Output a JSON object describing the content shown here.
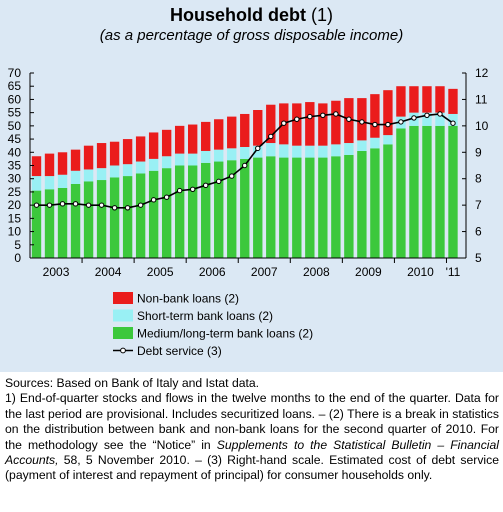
{
  "chart_data": {
    "type": "bar",
    "title": "Household debt",
    "title_note": "(1)",
    "subtitle": "(as a percentage of gross disposable income)",
    "x_tick_labels": [
      "2003",
      "2004",
      "2005",
      "2006",
      "2007",
      "2008",
      "2009",
      "2010",
      "'11"
    ],
    "ylim_left": [
      0,
      70
    ],
    "yticks_left": [
      "0",
      "5",
      "10",
      "15",
      "20",
      "25",
      "30",
      "35",
      "40",
      "45",
      "50",
      "55",
      "60",
      "65",
      "70"
    ],
    "ylim_right": [
      5,
      12
    ],
    "yticks_right": [
      "5",
      "6",
      "7",
      "8",
      "9",
      "10",
      "11",
      "12"
    ],
    "grid": false,
    "legend_placement": "bottom-left",
    "series": [
      {
        "name": "Medium/long-term bank loans (2)",
        "kind": "stacked-bar",
        "axis": "left",
        "color": "#3cc83c",
        "values": [
          25.5,
          26,
          26.5,
          28,
          29,
          29.5,
          30.5,
          31,
          32,
          33,
          34,
          35,
          35,
          36,
          36.5,
          37,
          37.5,
          38,
          38.5,
          38,
          38,
          38,
          38,
          38.5,
          39,
          40.5,
          41.5,
          43,
          49,
          50,
          50,
          50,
          50
        ]
      },
      {
        "name": "Short-term bank loans (2)",
        "kind": "stacked-bar",
        "axis": "left",
        "color": "#99f0f4",
        "values": [
          5.5,
          5,
          5,
          5,
          4.5,
          4.5,
          4.5,
          4.5,
          4.5,
          4.5,
          4.5,
          4.5,
          4.5,
          4.5,
          4.5,
          4.5,
          4.5,
          4.5,
          5,
          5,
          4.5,
          4.5,
          4.5,
          4.5,
          4.5,
          4,
          4,
          3.5,
          4.5,
          5,
          5,
          5,
          4.5
        ]
      },
      {
        "name": "Non-bank loans (2)",
        "kind": "stacked-bar",
        "axis": "left",
        "color": "#ea1c1c",
        "values": [
          7.5,
          8.5,
          8.5,
          8,
          9,
          9.5,
          9,
          9.5,
          9.5,
          10,
          10,
          10.5,
          11,
          11,
          11.5,
          12,
          12.5,
          13.5,
          14.5,
          15.5,
          16,
          16.5,
          16,
          16.5,
          17,
          16,
          16.5,
          17,
          11.5,
          10,
          10,
          10,
          9.5
        ]
      },
      {
        "name": "Debt service (3)",
        "kind": "line",
        "axis": "right",
        "color": "#000000",
        "values": [
          7,
          7,
          7.05,
          7.05,
          7,
          7,
          6.9,
          6.9,
          7,
          7.2,
          7.3,
          7.55,
          7.6,
          7.75,
          7.9,
          8.1,
          8.5,
          9.15,
          9.6,
          10.1,
          10.25,
          10.35,
          10.4,
          10.45,
          10.25,
          10.15,
          10.05,
          10.05,
          10.15,
          10.3,
          10.4,
          10.45,
          10.1
        ]
      }
    ]
  },
  "notes": {
    "line1": "Sources: Based on Bank of Italy and Istat data.",
    "line2": "1) End-of-quarter stocks and flows in the twelve months to the end of the quarter. Data for the last period are provisional. Includes securitized loans. – (2) There is a break in statistics on the distribution between bank and non-bank loans for the second quarter of 2010. For the methodology see the “Notice” in ",
    "line2_italic": "Supplements to the Statistical Bulletin – Financial Accounts,",
    "line2_end": " 58, 5 November 2010. – (3) Right-hand scale. Estimated cost of debt service (payment of interest and repayment of principal) for consumer households only."
  }
}
